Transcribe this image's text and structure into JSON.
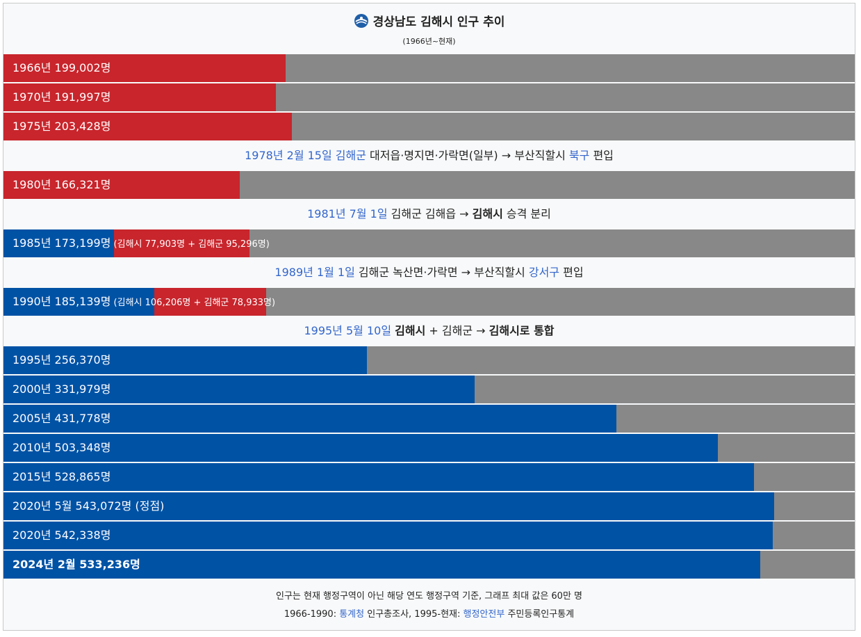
{
  "title": "경상남도 김해시 인구 추이",
  "subtitle": "(1966년~현재)",
  "icon": "city-emblem-icon",
  "colors": {
    "red": "#c8252c",
    "blue": "#0052a5",
    "gray": "#888888",
    "link": "#3366cc"
  },
  "chart_data": {
    "type": "bar",
    "orientation": "horizontal",
    "max_value": 600000,
    "rows": [
      {
        "kind": "bar",
        "label": "1966년 199,002명",
        "value": 199002,
        "color": "red"
      },
      {
        "kind": "bar",
        "label": "1970년 191,997명",
        "value": 191997,
        "color": "red"
      },
      {
        "kind": "bar",
        "label": "1975년 203,428명",
        "value": 203428,
        "color": "red"
      },
      {
        "kind": "event",
        "parts": [
          {
            "t": "1978년 2월 15일 ",
            "c": "hl"
          },
          {
            "t": "김해군",
            "c": "hl"
          },
          {
            "t": " 대저읍·명지면·가락면(일부) → 부산직할시 "
          },
          {
            "t": "북구",
            "c": "hl"
          },
          {
            "t": " 편입"
          }
        ]
      },
      {
        "kind": "bar",
        "label": "1980년 166,321명",
        "value": 166321,
        "color": "red"
      },
      {
        "kind": "event",
        "parts": [
          {
            "t": "1981년 7월 1일",
            "c": "hl"
          },
          {
            "t": " 김해군 김해읍 → "
          },
          {
            "t": "김해시",
            "c": "strong"
          },
          {
            "t": " 승격 분리"
          }
        ]
      },
      {
        "kind": "split",
        "label": "1985년 173,199명",
        "detail": "(김해시 77,903명 + 김해군 95,296명)",
        "segments": [
          {
            "name": "김해시",
            "value": 77903,
            "color": "blue"
          },
          {
            "name": "김해군",
            "value": 95296,
            "color": "red"
          }
        ]
      },
      {
        "kind": "event",
        "parts": [
          {
            "t": "1989년 1월 1일",
            "c": "hl"
          },
          {
            "t": " 김해군 녹산면·가락면 → 부산직할시 "
          },
          {
            "t": "강서구",
            "c": "hl"
          },
          {
            "t": " 편입"
          }
        ]
      },
      {
        "kind": "split",
        "label": "1990년 185,139명",
        "detail": "(김해시 106,206명 + 김해군 78,933명)",
        "segments": [
          {
            "name": "김해시",
            "value": 106206,
            "color": "blue"
          },
          {
            "name": "김해군",
            "value": 78933,
            "color": "red"
          }
        ]
      },
      {
        "kind": "event",
        "parts": [
          {
            "t": "1995년 5월 10일",
            "c": "hl"
          },
          {
            "t": " "
          },
          {
            "t": "김해시",
            "c": "strong"
          },
          {
            "t": " + 김해군 → "
          },
          {
            "t": "김해시로 통합",
            "c": "strong"
          }
        ]
      },
      {
        "kind": "bar",
        "label": "1995년 256,370명",
        "value": 256370,
        "color": "blue"
      },
      {
        "kind": "bar",
        "label": "2000년 331,979명",
        "value": 331979,
        "color": "blue"
      },
      {
        "kind": "bar",
        "label": "2005년 431,778명",
        "value": 431778,
        "color": "blue"
      },
      {
        "kind": "bar",
        "label": "2010년 503,348명",
        "value": 503348,
        "color": "blue"
      },
      {
        "kind": "bar",
        "label": "2015년 528,865명",
        "value": 528865,
        "color": "blue"
      },
      {
        "kind": "bar",
        "label": "2020년 5월 543,072명 (정점)",
        "value": 543072,
        "color": "blue"
      },
      {
        "kind": "bar",
        "label": "2020년 542,338명",
        "value": 542338,
        "color": "blue"
      },
      {
        "kind": "bar",
        "label": "2024년 2월 533,236명",
        "value": 533236,
        "color": "blue",
        "bold": true
      }
    ]
  },
  "footer": {
    "note": "인구는 현재 행정구역이 아닌 해당 연도 행정구역 기준, 그래프 최대 값은 60만 명",
    "source_prefix": "1966-1990: ",
    "source_link1": "통계청",
    "source_mid": " 인구총조사, 1995-현재: ",
    "source_link2": "행정안전부",
    "source_suffix": " 주민등록인구통계"
  }
}
